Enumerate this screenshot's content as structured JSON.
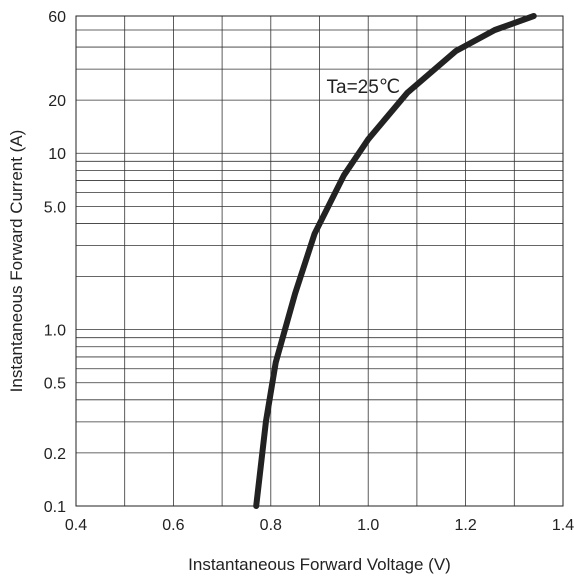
{
  "chart_data": {
    "type": "line",
    "title": "",
    "xlabel": "Instantaneous Forward Voltage (V)",
    "ylabel": "Instantaneous Forward Current (A)",
    "x_scale": "linear",
    "y_scale": "log",
    "xlim": [
      0.4,
      1.4
    ],
    "ylim": [
      0.1,
      60
    ],
    "grid": true,
    "x_ticks": [
      0.4,
      0.6,
      0.8,
      1.0,
      1.2,
      1.4
    ],
    "x_tick_labels": [
      "0.4",
      "0.6",
      "0.8",
      "1.0",
      "1.2",
      "1.4"
    ],
    "y_ticks": [
      0.1,
      0.2,
      0.5,
      1.0,
      5.0,
      10,
      20,
      60
    ],
    "y_tick_labels": [
      "0.1",
      "0.2",
      "0.5",
      "1.0",
      "5.0",
      "10",
      "20",
      "60"
    ],
    "x_minor_grid": [
      0.5,
      0.7,
      0.9,
      1.1,
      1.3
    ],
    "y_minor_grid": [
      0.3,
      0.4,
      0.6,
      0.7,
      0.8,
      0.9,
      2,
      3,
      4,
      6,
      7,
      8,
      9,
      30,
      40,
      50
    ],
    "annotation": {
      "text": "Ta=25℃",
      "x": 0.99,
      "y": 22
    },
    "series": [
      {
        "color": "#222222",
        "x": [
          0.77,
          0.79,
          0.81,
          0.85,
          0.89,
          0.95,
          1.0,
          1.08,
          1.18,
          1.26,
          1.34
        ],
        "y": [
          0.1,
          0.3,
          0.65,
          1.6,
          3.5,
          7.5,
          12,
          22,
          38,
          50,
          60
        ]
      }
    ]
  }
}
